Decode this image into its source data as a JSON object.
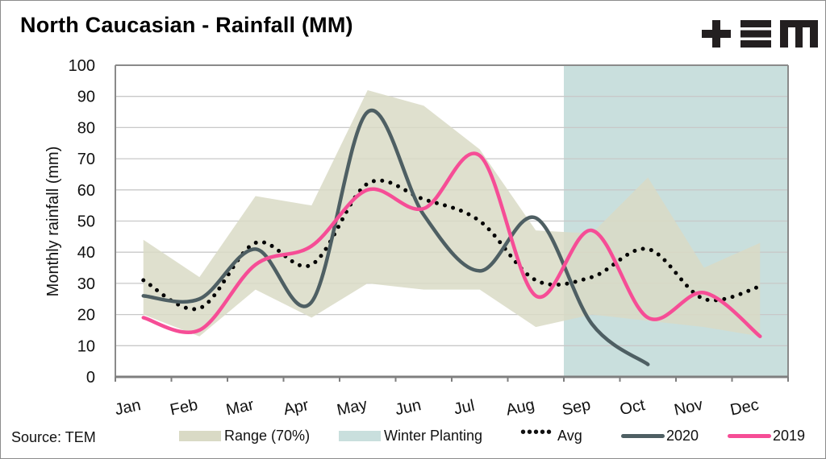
{
  "chart_data": {
    "type": "line",
    "title": "North Caucasian  - Rainfall (MM)",
    "xlabel": "",
    "ylabel": "Monthly rainfall (mm)",
    "ylim": [
      0,
      100
    ],
    "yticks": [
      0,
      10,
      20,
      30,
      40,
      50,
      60,
      70,
      80,
      90,
      100
    ],
    "grid": true,
    "categories": [
      "Jan",
      "Feb",
      "Mar",
      "Apr",
      "May",
      "Jun",
      "Jul",
      "Aug",
      "Sep",
      "Oct",
      "Nov",
      "Dec"
    ],
    "range_70": {
      "name": "Range (70%)",
      "upper": [
        44,
        32,
        58,
        55,
        92,
        87,
        73,
        47,
        46,
        64,
        35,
        43
      ],
      "lower": [
        20,
        13,
        28,
        19,
        30,
        28,
        28,
        16,
        20,
        18,
        16,
        13
      ],
      "color": "#d9dac5"
    },
    "winter_planting": {
      "name": "Winter Planting",
      "from_category": "Sep",
      "to_category": "Dec",
      "color": "#c9dfdd"
    },
    "series": [
      {
        "name": "Avg",
        "style": "dotted",
        "color": "#000000",
        "values": [
          31,
          22,
          43,
          36,
          62,
          57,
          50,
          31,
          32,
          41,
          25,
          29
        ]
      },
      {
        "name": "2020",
        "style": "solid",
        "color": "#4e5f63",
        "values": [
          26,
          25,
          41,
          24,
          85,
          52,
          34,
          51,
          17,
          4,
          null,
          null
        ]
      },
      {
        "name": "2019",
        "style": "solid",
        "color": "#f64d96",
        "values": [
          19,
          15,
          36,
          42,
          60,
          54,
          71,
          26,
          47,
          19,
          27,
          13
        ]
      }
    ],
    "legend": [
      "Range (70%)",
      "Winter Planting",
      "Avg",
      "2020",
      "2019"
    ],
    "legend_position": "bottom"
  },
  "header": {
    "title": "North Caucasian  - Rainfall (MM)",
    "logo": "TEM logo"
  },
  "footer": {
    "source": "Source: TEM",
    "legend_range": "Range (70%)",
    "legend_winter": "Winter Planting",
    "legend_avg": "Avg",
    "legend_2020": "2020",
    "legend_2019": "2019",
    "avg_dots": "•••••"
  }
}
